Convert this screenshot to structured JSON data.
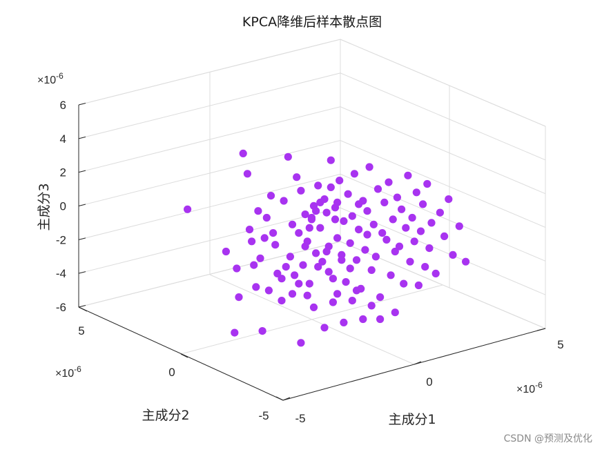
{
  "chart_data": {
    "type": "scatter3d",
    "title": "KPCA降维后样本散点图",
    "xlabel": "主成分1",
    "ylabel": "主成分2",
    "zlabel": "主成分3",
    "x_exponent": "×10",
    "x_exponent_power": "-6",
    "y_exponent": "×10",
    "y_exponent_power": "-6",
    "z_exponent": "×10",
    "z_exponent_power": "-6",
    "xlim": [
      -5,
      5
    ],
    "ylim": [
      -5,
      5
    ],
    "zlim": [
      -6,
      6
    ],
    "x_ticks": [
      "-5",
      "0",
      "5"
    ],
    "y_ticks": [
      "-5",
      "0",
      "5"
    ],
    "z_ticks": [
      "-6",
      "-4",
      "-2",
      "0",
      "2",
      "4",
      "6"
    ],
    "x_tick_values": [
      -5,
      0,
      5
    ],
    "y_tick_values": [
      -5,
      0,
      5
    ],
    "z_tick_values": [
      -6,
      -4,
      -2,
      0,
      2,
      4,
      6
    ],
    "grid": true,
    "marker_color": "#a833f0",
    "points": [
      [
        -6.4,
        1.5
      ],
      [
        -4.6,
        -1.0
      ],
      [
        -4.1,
        -2.0
      ],
      [
        -4.0,
        -3.7
      ],
      [
        -3.8,
        4.8
      ],
      [
        -3.6,
        3.6
      ],
      [
        -3.5,
        0.3
      ],
      [
        -3.4,
        -0.4
      ],
      [
        -3.3,
        -1.8
      ],
      [
        -3.2,
        -3.1
      ],
      [
        -3.1,
        1.4
      ],
      [
        -3.0,
        -1.4
      ],
      [
        -2.8,
        -0.2
      ],
      [
        -2.6,
        -3.3
      ],
      [
        -2.5,
        2.3
      ],
      [
        -2.4,
        0.1
      ],
      [
        -2.3,
        -0.6
      ],
      [
        -2.2,
        -2.3
      ],
      [
        -2.0,
        -3.9
      ],
      [
        -1.9,
        2.0
      ],
      [
        -1.8,
        -1.9
      ],
      [
        -1.7,
        4.6
      ],
      [
        -1.6,
        -1.3
      ],
      [
        -1.5,
        0.6
      ],
      [
        -1.4,
        -2.4
      ],
      [
        -1.3,
        3.4
      ],
      [
        -1.2,
        0.1
      ],
      [
        -1.1,
        2.6
      ],
      [
        -1.0,
        -1.8
      ],
      [
        -0.9,
        1.2
      ],
      [
        -0.8,
        -0.4
      ],
      [
        -0.7,
        -2.9
      ],
      [
        -0.6,
        0.9
      ],
      [
        -0.5,
        1.7
      ],
      [
        -0.4,
        -1.1
      ],
      [
        -0.3,
        2.9
      ],
      [
        -0.2,
        0.4
      ],
      [
        -0.1,
        -1.6
      ],
      [
        0.0,
        2.1
      ],
      [
        0.1,
        1.3
      ],
      [
        0.2,
        -0.7
      ],
      [
        0.3,
        4.4
      ],
      [
        0.4,
        -2.6
      ],
      [
        0.5,
        1.6
      ],
      [
        0.6,
        -0.2
      ],
      [
        0.7,
        3.2
      ],
      [
        0.8,
        -1.2
      ],
      [
        0.9,
        0.8
      ],
      [
        1.0,
        -2.8
      ],
      [
        1.1,
        2.4
      ],
      [
        1.2,
        -0.5
      ],
      [
        1.3,
        1.1
      ],
      [
        1.4,
        3.6
      ],
      [
        1.5,
        -1.5
      ],
      [
        1.6,
        0.3
      ],
      [
        1.7,
        -3.2
      ],
      [
        1.8,
        2.0
      ],
      [
        1.9,
        -0.9
      ],
      [
        2.0,
        1.4
      ],
      [
        2.1,
        4.0
      ],
      [
        2.2,
        -2.1
      ],
      [
        2.3,
        0.6
      ],
      [
        2.4,
        -1.3
      ],
      [
        2.5,
        2.7
      ],
      [
        2.6,
        -3.7
      ],
      [
        2.7,
        0.1
      ],
      [
        2.8,
        1.9
      ],
      [
        2.9,
        -0.3
      ],
      [
        3.0,
        3.1
      ],
      [
        3.1,
        -2.4
      ],
      [
        3.2,
        0.9
      ],
      [
        3.3,
        -1.0
      ],
      [
        3.4,
        2.2
      ],
      [
        3.5,
        -0.7
      ],
      [
        3.6,
        1.5
      ],
      [
        3.7,
        -2.9
      ],
      [
        3.8,
        0.4
      ],
      [
        3.9,
        3.5
      ],
      [
        4.0,
        -1.6
      ],
      [
        4.1,
        1.0
      ],
      [
        4.2,
        -0.4
      ],
      [
        4.3,
        2.5
      ],
      [
        4.4,
        -3.0
      ],
      [
        4.5,
        0.2
      ],
      [
        4.6,
        1.8
      ],
      [
        4.7,
        -1.9
      ],
      [
        4.8,
        3.0
      ],
      [
        4.9,
        -0.8
      ],
      [
        5.0,
        0.7
      ],
      [
        5.2,
        -2.3
      ],
      [
        5.4,
        1.3
      ],
      [
        5.6,
        -0.1
      ],
      [
        5.8,
        2.1
      ],
      [
        6.0,
        -1.2
      ],
      [
        6.3,
        0.5
      ],
      [
        6.6,
        -1.6
      ],
      [
        -2.9,
        -5.7
      ],
      [
        -1.1,
        -6.4
      ],
      [
        -4.2,
        -5.8
      ],
      [
        0.0,
        -5.5
      ],
      [
        0.9,
        -5.2
      ],
      [
        1.8,
        -5.0
      ],
      [
        2.6,
        -5.0
      ],
      [
        3.3,
        -4.6
      ],
      [
        -0.5,
        -4.3
      ],
      [
        0.4,
        -4.0
      ],
      [
        1.3,
        -3.9
      ],
      [
        2.2,
        -4.2
      ],
      [
        -1.5,
        -3.5
      ],
      [
        -0.8,
        -3.6
      ],
      [
        0.6,
        -3.5
      ],
      [
        1.5,
        -3.3
      ],
      [
        -2.0,
        -2.6
      ],
      [
        -1.2,
        -2.9
      ],
      [
        0.2,
        -2.2
      ],
      [
        1.2,
        -2.0
      ],
      [
        -0.3,
        -1.9
      ],
      [
        0.8,
        -1.5
      ],
      [
        -0.6,
        1.0
      ],
      [
        0.5,
        0.9
      ],
      [
        -0.2,
        1.9
      ],
      [
        0.3,
        2.8
      ],
      [
        -0.4,
        1.4
      ],
      [
        0.6,
        1.9
      ],
      [
        -0.7,
        0.4
      ],
      [
        1.6,
        1.8
      ],
      [
        2.0,
        0.0
      ],
      [
        -2.7,
        1.0
      ],
      [
        -0.9,
        -0.7
      ],
      [
        0.1,
        -1.0
      ]
    ],
    "points_note": "projected screen-plane positions in data units: [horizontal along x-axis, vertical along z-axis]"
  },
  "watermark": "CSDN @预测及优化"
}
